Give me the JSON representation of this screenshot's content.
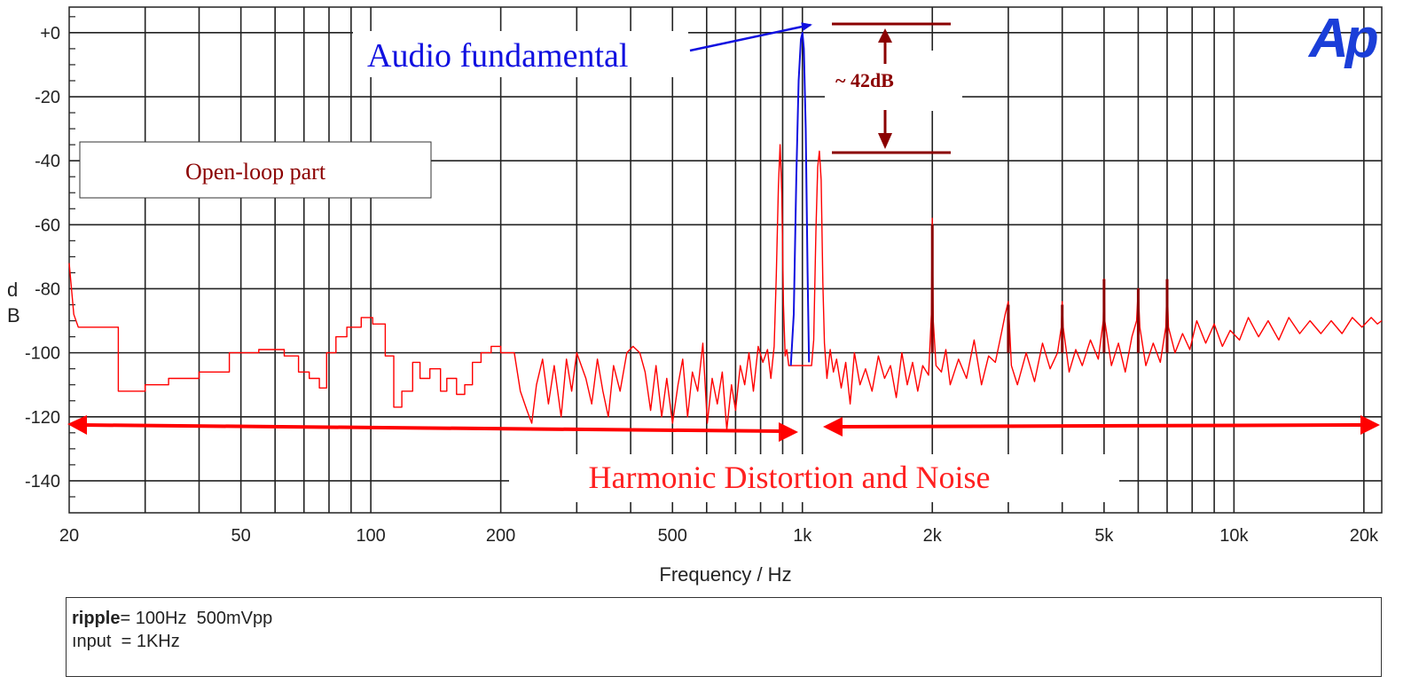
{
  "chart_data": {
    "type": "line",
    "xscale": "log",
    "xlim": [
      20,
      22000
    ],
    "ylim": [
      -150,
      8
    ],
    "xlabel": "Frequency / Hz",
    "ylabel": "dB",
    "xticks": [
      20,
      50,
      100,
      200,
      500,
      1000,
      2000,
      5000,
      10000,
      20000
    ],
    "xtick_labels": [
      "20",
      "50",
      "100",
      "200",
      "500",
      "1k",
      "2k",
      "5k",
      "10k",
      "20k"
    ],
    "yticks": [
      0,
      -20,
      -40,
      -60,
      -80,
      -100,
      -120,
      -140
    ],
    "ytick_labels": [
      "+0",
      "-20",
      "-40",
      "-60",
      "-80",
      "-100",
      "-120",
      "-140"
    ],
    "grid": true,
    "series": [
      {
        "color": "#ff0000",
        "points": [
          [
            20,
            -72
          ],
          [
            20.5,
            -88
          ],
          [
            21,
            -92
          ],
          [
            26,
            -92
          ],
          [
            26,
            -112
          ],
          [
            30,
            -112
          ],
          [
            30,
            -110
          ],
          [
            34,
            -110
          ],
          [
            34,
            -108
          ],
          [
            40,
            -108
          ],
          [
            40,
            -106
          ],
          [
            47,
            -106
          ],
          [
            47,
            -100
          ],
          [
            55,
            -100
          ],
          [
            55,
            -99
          ],
          [
            63,
            -99
          ],
          [
            63,
            -101
          ],
          [
            68,
            -101
          ],
          [
            68,
            -106
          ],
          [
            72,
            -106
          ],
          [
            72,
            -108
          ],
          [
            76,
            -108
          ],
          [
            76,
            -111
          ],
          [
            79,
            -111
          ],
          [
            79,
            -100
          ],
          [
            83,
            -100
          ],
          [
            83,
            -95
          ],
          [
            88,
            -95
          ],
          [
            88,
            -92
          ],
          [
            95,
            -92
          ],
          [
            95,
            -89
          ],
          [
            101,
            -89
          ],
          [
            101,
            -91
          ],
          [
            108,
            -91
          ],
          [
            108,
            -101
          ],
          [
            113,
            -101
          ],
          [
            113,
            -117
          ],
          [
            118,
            -117
          ],
          [
            118,
            -112
          ],
          [
            125,
            -112
          ],
          [
            125,
            -103
          ],
          [
            130,
            -103
          ],
          [
            130,
            -108
          ],
          [
            137,
            -108
          ],
          [
            137,
            -105
          ],
          [
            145,
            -105
          ],
          [
            145,
            -112
          ],
          [
            150,
            -112
          ],
          [
            150,
            -108
          ],
          [
            158,
            -108
          ],
          [
            158,
            -113
          ],
          [
            165,
            -113
          ],
          [
            165,
            -110
          ],
          [
            172,
            -110
          ],
          [
            172,
            -103
          ],
          [
            180,
            -103
          ],
          [
            180,
            -100
          ],
          [
            190,
            -100
          ],
          [
            190,
            -98
          ],
          [
            200,
            -98
          ],
          [
            200,
            -100
          ],
          [
            215,
            -100
          ],
          [
            222,
            -112
          ],
          [
            230,
            -118
          ],
          [
            236,
            -122
          ],
          [
            242,
            -110
          ],
          [
            250,
            -102
          ],
          [
            258,
            -116
          ],
          [
            266,
            -104
          ],
          [
            276,
            -120
          ],
          [
            284,
            -102
          ],
          [
            292,
            -112
          ],
          [
            300,
            -100
          ],
          [
            315,
            -108
          ],
          [
            325,
            -116
          ],
          [
            335,
            -102
          ],
          [
            345,
            -112
          ],
          [
            355,
            -120
          ],
          [
            365,
            -104
          ],
          [
            378,
            -112
          ],
          [
            392,
            -100
          ],
          [
            405,
            -98
          ],
          [
            420,
            -100
          ],
          [
            432,
            -106
          ],
          [
            445,
            -118
          ],
          [
            458,
            -104
          ],
          [
            472,
            -120
          ],
          [
            485,
            -108
          ],
          [
            500,
            -122
          ],
          [
            515,
            -110
          ],
          [
            528,
            -102
          ],
          [
            542,
            -120
          ],
          [
            556,
            -106
          ],
          [
            572,
            -112
          ],
          [
            588,
            -97
          ],
          [
            602,
            -122
          ],
          [
            618,
            -108
          ],
          [
            635,
            -116
          ],
          [
            652,
            -106
          ],
          [
            668,
            -124
          ],
          [
            685,
            -110
          ],
          [
            700,
            -118
          ],
          [
            718,
            -104
          ],
          [
            735,
            -110
          ],
          [
            752,
            -100
          ],
          [
            770,
            -112
          ],
          [
            790,
            -98
          ],
          [
            810,
            -103
          ],
          [
            830,
            -99
          ],
          [
            845,
            -108
          ],
          [
            860,
            -98
          ],
          [
            870,
            -76
          ],
          [
            880,
            -48
          ],
          [
            888,
            -35
          ],
          [
            896,
            -50
          ],
          [
            904,
            -85
          ],
          [
            912,
            -101
          ],
          [
            920,
            -99
          ],
          [
            930,
            -104
          ],
          [
            1050,
            -104
          ],
          [
            1062,
            -96
          ],
          [
            1075,
            -62
          ],
          [
            1085,
            -42
          ],
          [
            1095,
            -37
          ],
          [
            1105,
            -46
          ],
          [
            1115,
            -78
          ],
          [
            1125,
            -97
          ],
          [
            1140,
            -108
          ],
          [
            1160,
            -99
          ],
          [
            1180,
            -106
          ],
          [
            1200,
            -102
          ],
          [
            1230,
            -111
          ],
          [
            1260,
            -103
          ],
          [
            1290,
            -116
          ],
          [
            1320,
            -100
          ],
          [
            1360,
            -110
          ],
          [
            1400,
            -105
          ],
          [
            1450,
            -112
          ],
          [
            1500,
            -101
          ],
          [
            1550,
            -108
          ],
          [
            1600,
            -104
          ],
          [
            1650,
            -114
          ],
          [
            1700,
            -100
          ],
          [
            1750,
            -110
          ],
          [
            1800,
            -103
          ],
          [
            1850,
            -112
          ],
          [
            1900,
            -104
          ],
          [
            1960,
            -107
          ],
          [
            1990,
            -88
          ],
          [
            2000,
            -58
          ],
          [
            2010,
            -90
          ],
          [
            2040,
            -104
          ],
          [
            2100,
            -106
          ],
          [
            2150,
            -99
          ],
          [
            2200,
            -110
          ],
          [
            2300,
            -102
          ],
          [
            2400,
            -108
          ],
          [
            2500,
            -96
          ],
          [
            2600,
            -110
          ],
          [
            2700,
            -101
          ],
          [
            2800,
            -103
          ],
          [
            2900,
            -93
          ],
          [
            2950,
            -88
          ],
          [
            3000,
            -84
          ],
          [
            3050,
            -104
          ],
          [
            3150,
            -110
          ],
          [
            3300,
            -100
          ],
          [
            3450,
            -109
          ],
          [
            3600,
            -97
          ],
          [
            3750,
            -105
          ],
          [
            3900,
            -100
          ],
          [
            3980,
            -92
          ],
          [
            4000,
            -84
          ],
          [
            4020,
            -92
          ],
          [
            4150,
            -106
          ],
          [
            4300,
            -99
          ],
          [
            4450,
            -104
          ],
          [
            4650,
            -96
          ],
          [
            4850,
            -102
          ],
          [
            4980,
            -90
          ],
          [
            5000,
            -77
          ],
          [
            5020,
            -90
          ],
          [
            5200,
            -104
          ],
          [
            5400,
            -97
          ],
          [
            5600,
            -106
          ],
          [
            5800,
            -95
          ],
          [
            5950,
            -90
          ],
          [
            6000,
            -80
          ],
          [
            6050,
            -92
          ],
          [
            6250,
            -104
          ],
          [
            6500,
            -97
          ],
          [
            6750,
            -103
          ],
          [
            6950,
            -92
          ],
          [
            7000,
            -78
          ],
          [
            7050,
            -92
          ],
          [
            7300,
            -100
          ],
          [
            7600,
            -94
          ],
          [
            7900,
            -99
          ],
          [
            8200,
            -90
          ],
          [
            8600,
            -97
          ],
          [
            9000,
            -91
          ],
          [
            9400,
            -98
          ],
          [
            9800,
            -93
          ],
          [
            10300,
            -96
          ],
          [
            10800,
            -89
          ],
          [
            11400,
            -95
          ],
          [
            12000,
            -90
          ],
          [
            12700,
            -96
          ],
          [
            13400,
            -89
          ],
          [
            14200,
            -94
          ],
          [
            15000,
            -90
          ],
          [
            15900,
            -94
          ],
          [
            16800,
            -90
          ],
          [
            17800,
            -94
          ],
          [
            18800,
            -89
          ],
          [
            19800,
            -92
          ],
          [
            20800,
            -89
          ],
          [
            21500,
            -91
          ],
          [
            22000,
            -90
          ]
        ]
      },
      {
        "color": "#1010e0",
        "points": [
          [
            940,
            -104
          ],
          [
            955,
            -88
          ],
          [
            968,
            -45
          ],
          [
            980,
            -15
          ],
          [
            992,
            -2
          ],
          [
            1000,
            0
          ],
          [
            1008,
            -5
          ],
          [
            1018,
            -30
          ],
          [
            1028,
            -75
          ],
          [
            1036,
            -103
          ]
        ]
      },
      {
        "color": "#8b0000",
        "points": [
          [
            2000,
            -100
          ],
          [
            2000,
            -60
          ],
          [
            3000,
            -100
          ],
          [
            3000,
            -85
          ],
          [
            4000,
            -100
          ],
          [
            4000,
            -85
          ],
          [
            5000,
            -100
          ],
          [
            5000,
            -77
          ],
          [
            6000,
            -100
          ],
          [
            6000,
            -80
          ],
          [
            7000,
            -100
          ],
          [
            7000,
            -77
          ]
        ]
      }
    ]
  },
  "annotations": {
    "fundamental": "Audio fundamental",
    "gap": "~ 42dB",
    "open_loop": "Open-loop part",
    "hdn": "Harmonic Distortion and Noise"
  },
  "logo": "Ap",
  "colors": {
    "trace": "#ff0000",
    "fundamental": "#1010e0",
    "annotation_dark": "#8b0000",
    "hdn_arrow": "#ff0000",
    "logo": "#1a3ed8"
  },
  "footer": {
    "line1_key": "ripple",
    "line1_rest": "= 100Hz  500mVpp",
    "line2": "ınput  = 1KHz"
  }
}
